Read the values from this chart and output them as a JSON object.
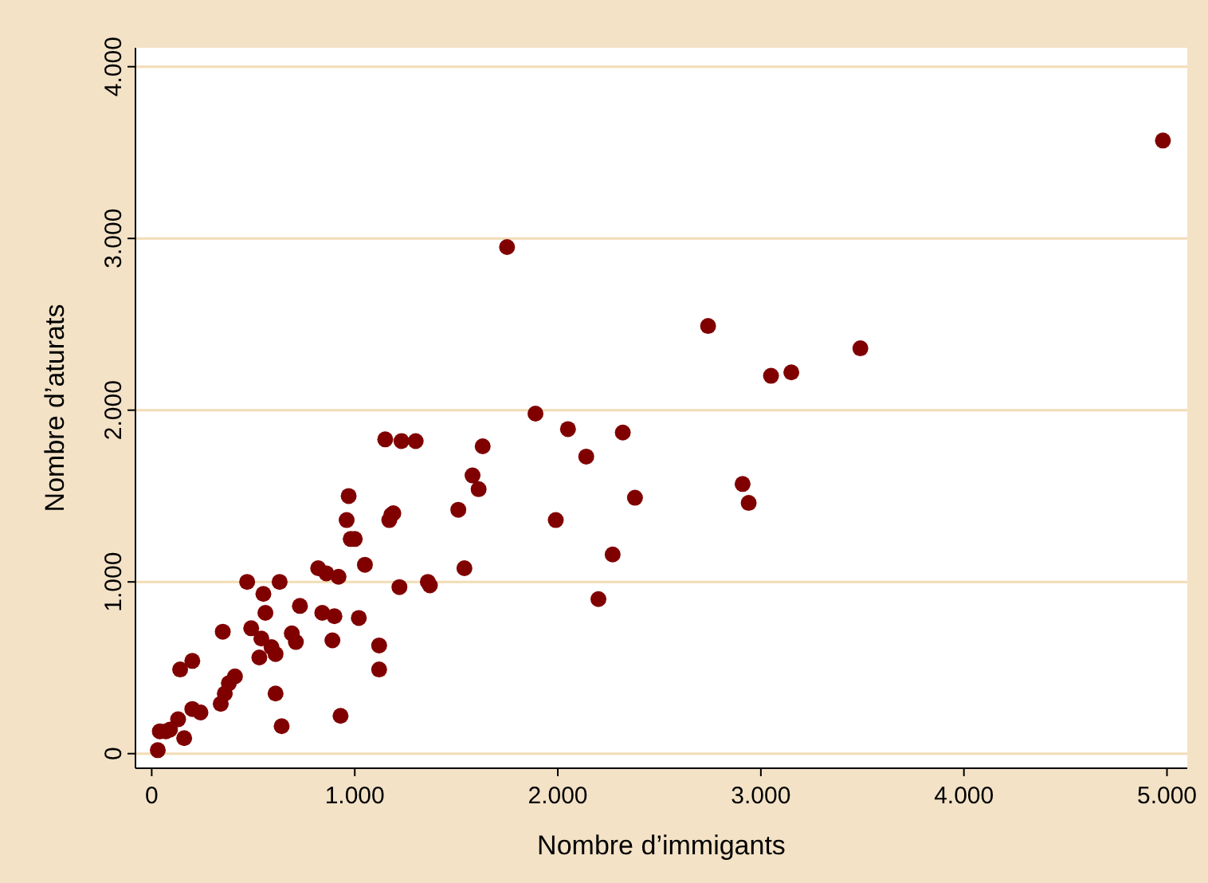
{
  "chart_data": {
    "type": "scatter",
    "xlabel": "Nombre d’immigants",
    "ylabel": "Nombre d’aturats",
    "x": [
      30,
      40,
      70,
      90,
      130,
      160,
      140,
      200,
      200,
      240,
      340,
      360,
      380,
      410,
      350,
      470,
      490,
      540,
      550,
      530,
      560,
      590,
      610,
      610,
      630,
      640,
      690,
      710,
      730,
      820,
      840,
      860,
      890,
      900,
      920,
      930,
      960,
      970,
      980,
      1000,
      1020,
      1050,
      1120,
      1120,
      1150,
      1170,
      1180,
      1190,
      1220,
      1230,
      1300,
      1360,
      1370,
      1510,
      1540,
      1580,
      1610,
      1630,
      1750,
      1890,
      1990,
      2050,
      2140,
      2200,
      2270,
      2320,
      2380,
      2740,
      2910,
      2940,
      3050,
      3150,
      3490,
      4980
    ],
    "values": [
      20,
      130,
      130,
      140,
      200,
      90,
      490,
      540,
      260,
      240,
      290,
      350,
      410,
      450,
      710,
      1000,
      730,
      670,
      930,
      560,
      820,
      620,
      580,
      350,
      1000,
      160,
      700,
      650,
      860,
      1080,
      820,
      1050,
      660,
      800,
      1030,
      220,
      1360,
      1500,
      1250,
      1250,
      790,
      1100,
      630,
      490,
      1830,
      1360,
      1390,
      1400,
      970,
      1820,
      1820,
      1000,
      980,
      1420,
      1080,
      1620,
      1540,
      1790,
      2950,
      1980,
      1360,
      1890,
      1730,
      900,
      1160,
      1870,
      1490,
      2490,
      1570,
      1460,
      2200,
      2220,
      2360,
      3570
    ],
    "color": "#800000",
    "marker": "circle",
    "xlim": [
      -80,
      5100
    ],
    "ylim": [
      -85,
      4110
    ],
    "xticks": [
      {
        "value": 0,
        "label": "0"
      },
      {
        "value": 1000,
        "label": "1.000"
      },
      {
        "value": 2000,
        "label": "2.000"
      },
      {
        "value": 3000,
        "label": "3.000"
      },
      {
        "value": 4000,
        "label": "4.000"
      },
      {
        "value": 5000,
        "label": "5.000"
      }
    ],
    "yticks": [
      {
        "value": 0,
        "label": "0"
      },
      {
        "value": 1000,
        "label": "1.000"
      },
      {
        "value": 2000,
        "label": "2.000"
      },
      {
        "value": 3000,
        "label": "3.000"
      },
      {
        "value": 4000,
        "label": "4.000"
      }
    ],
    "grid": "y"
  }
}
